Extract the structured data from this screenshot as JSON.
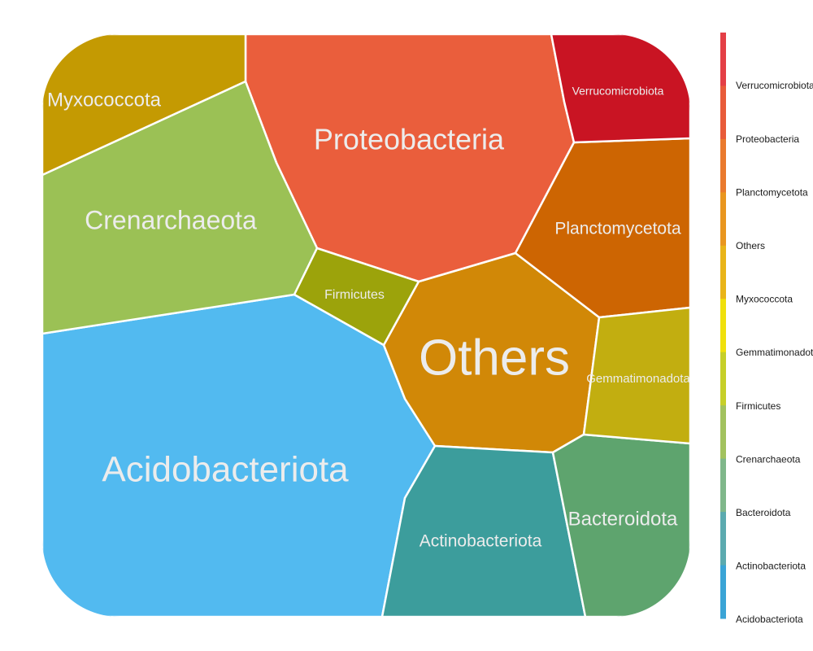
{
  "chart_data": {
    "type": "voronoi-treemap",
    "title": "",
    "cells": [
      {
        "name": "Acidobacteriota",
        "label": "Acidobacteriota",
        "color": "#52BAF0"
      },
      {
        "name": "Others",
        "label": "Others",
        "color": "#D18807"
      },
      {
        "name": "Proteobacteria",
        "label": "Proteobacteria",
        "color": "#EA5E3C"
      },
      {
        "name": "Crenarchaeota",
        "label": "Crenarchaeota",
        "color": "#9BC155"
      },
      {
        "name": "Actinobacteriota",
        "label": "Actinobacteriota",
        "color": "#3C9D9C"
      },
      {
        "name": "Planctomycetota",
        "label": "Planctomycetota",
        "color": "#CD6502"
      },
      {
        "name": "Myxococcota",
        "label": "Myxococcota",
        "color": "#C49A02"
      },
      {
        "name": "Bacteroidota",
        "label": "Bacteroidota",
        "color": "#5EA46E"
      },
      {
        "name": "Verrucomicrobiota",
        "label": "Verrucomicrobiota",
        "color": "#C91423"
      },
      {
        "name": "Gemmatimonadota",
        "label": "Gemmatimonadota",
        "color": "#C2AE10"
      },
      {
        "name": "Firmicutes",
        "label": "Firmicutes",
        "color": "#9CA30B"
      }
    ],
    "legend": {
      "position": "right",
      "entries": [
        "Verrucomicrobiota",
        "Proteobacteria",
        "Planctomycetota",
        "Others",
        "Myxococcota",
        "Gemmatimonadota",
        "Firmicutes",
        "Crenarchaeota",
        "Bacteroidota",
        "Actinobacteriota",
        "Acidobacteriota"
      ],
      "colorbar": [
        "#E43F46",
        "#E85B3A",
        "#EA7A2E",
        "#E9961F",
        "#E9B419",
        "#F0E00C",
        "#C6CF29",
        "#A2C25E",
        "#7FB78A",
        "#5BAAAF",
        "#3AA4D6"
      ]
    }
  }
}
